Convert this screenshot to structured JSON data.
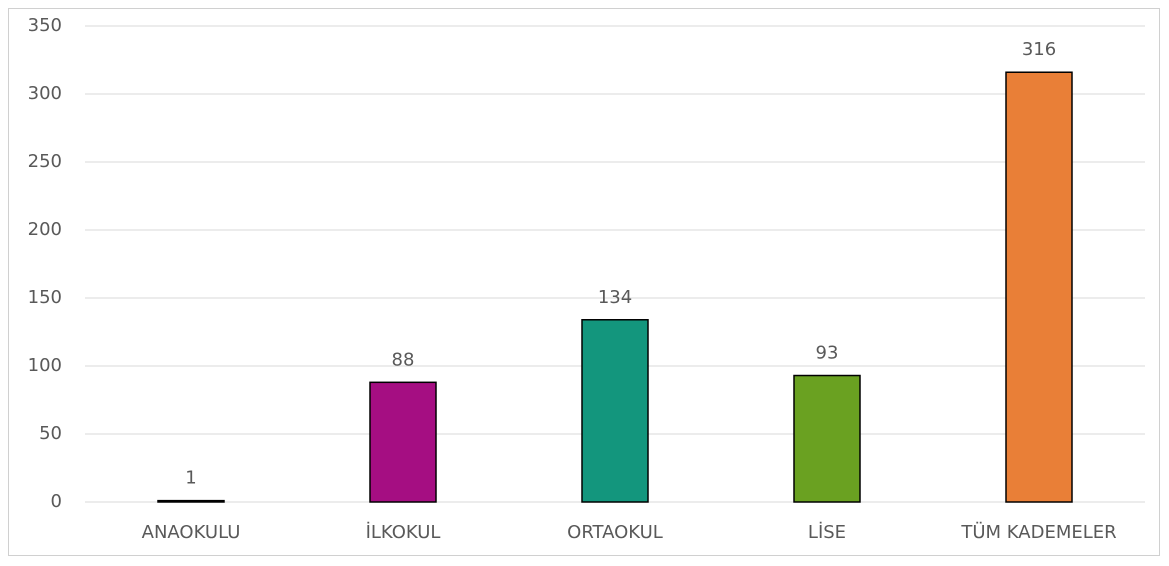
{
  "chart_data": {
    "type": "bar",
    "categories": [
      "ANAOKULU",
      "İLKOKUL",
      "ORTAOKUL",
      "LİSE",
      "TÜM KADEMELER"
    ],
    "values": [
      1,
      88,
      134,
      93,
      316
    ],
    "colors": [
      "#2f5597",
      "#a50e82",
      "#13967d",
      "#6aa121",
      "#e97f37"
    ],
    "ylim": [
      0,
      350
    ],
    "yticks": [
      0,
      50,
      100,
      150,
      200,
      250,
      300,
      350
    ],
    "grid": true
  }
}
